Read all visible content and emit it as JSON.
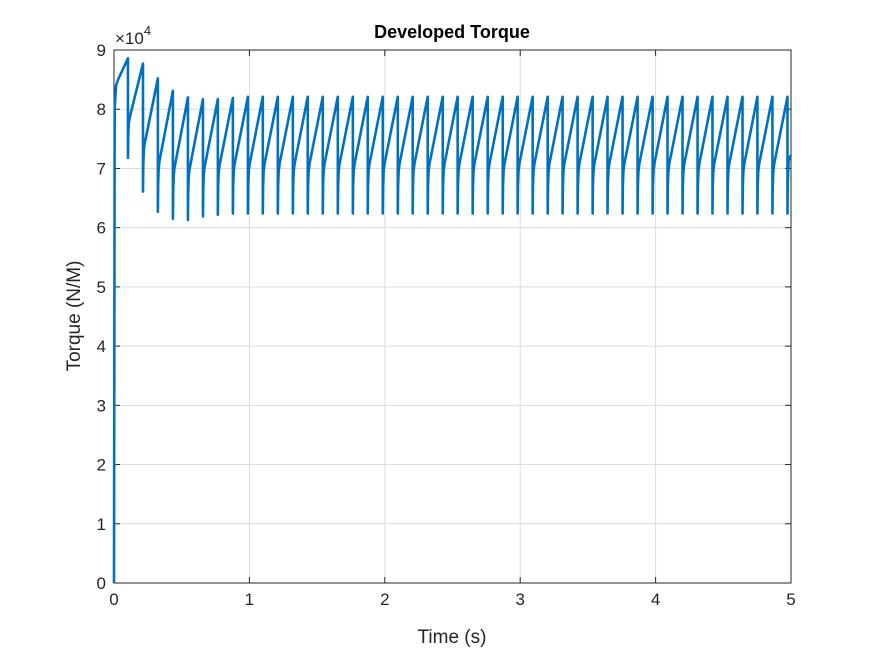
{
  "chart_data": {
    "type": "line",
    "title": "Developed Torque",
    "xlabel": "Time (s)",
    "ylabel": "Torque (N/M)",
    "xlim": [
      0,
      5
    ],
    "ylim": [
      0,
      9
    ],
    "y_exponent_label": {
      "base": "×10",
      "exp": "4"
    },
    "y_scale_exponent": 4,
    "xticks": [
      "0",
      "1",
      "2",
      "3",
      "4",
      "5"
    ],
    "yticks": [
      "0",
      "1",
      "2",
      "3",
      "4",
      "5",
      "6",
      "7",
      "8",
      "9"
    ],
    "grid": true,
    "color": "#0072BD",
    "series": [
      {
        "name": "Torque",
        "startup": {
          "x": [
            0,
            0.005,
            0.015,
            0.03
          ],
          "y": [
            0,
            8.0,
            8.4,
            8.5
          ]
        },
        "peak_times": [
          0.103,
          0.214,
          0.324,
          0.435,
          0.546,
          0.657,
          0.767,
          0.878,
          0.989,
          1.099,
          1.21,
          1.321,
          1.431,
          1.542,
          1.653,
          1.764,
          1.874,
          1.985,
          2.096,
          2.206,
          2.317,
          2.428,
          2.538,
          2.649,
          2.76,
          2.871,
          2.981,
          3.092,
          3.203,
          3.313,
          3.424,
          3.535,
          3.645,
          3.756,
          3.867,
          3.978,
          4.088,
          4.199,
          4.31,
          4.42,
          4.531,
          4.642,
          4.752,
          4.863,
          4.974
        ],
        "peak_values": [
          8.86,
          8.77,
          8.52,
          8.31,
          8.2,
          8.17,
          8.17,
          8.19,
          8.21,
          8.21,
          8.21,
          8.21,
          8.21,
          8.21,
          8.21,
          8.21,
          8.21,
          8.21,
          8.21,
          8.21,
          8.21,
          8.21,
          8.21,
          8.21,
          8.21,
          8.21,
          8.21,
          8.21,
          8.21,
          8.21,
          8.21,
          8.21,
          8.21,
          8.21,
          8.21,
          8.21,
          8.21,
          8.21,
          8.21,
          8.21,
          8.21,
          8.21,
          8.21,
          8.21,
          8.21
        ],
        "trough_values": [
          7.18,
          6.61,
          6.27,
          6.15,
          6.13,
          6.19,
          6.22,
          6.24,
          6.24,
          6.24,
          6.24,
          6.24,
          6.24,
          6.24,
          6.24,
          6.24,
          6.24,
          6.24,
          6.24,
          6.24,
          6.24,
          6.24,
          6.24,
          6.24,
          6.24,
          6.24,
          6.24,
          6.24,
          6.24,
          6.24,
          6.24,
          6.24,
          6.24,
          6.24,
          6.24,
          6.24,
          6.24,
          6.24,
          6.24,
          6.24,
          6.24,
          6.24,
          6.24,
          6.24,
          6.24
        ],
        "end_value": 7.23
      }
    ]
  }
}
